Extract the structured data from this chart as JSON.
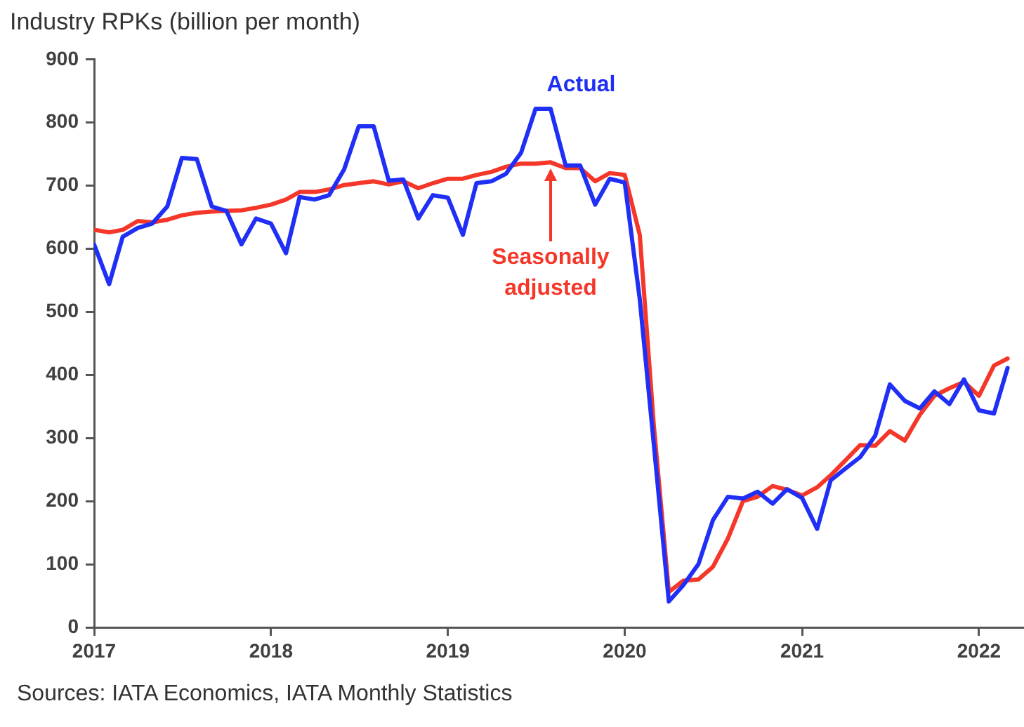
{
  "chart_data": {
    "type": "line",
    "title": "Industry RPKs (billion per month)",
    "x": [
      "2017-01",
      "2017-02",
      "2017-03",
      "2017-04",
      "2017-05",
      "2017-06",
      "2017-07",
      "2017-08",
      "2017-09",
      "2017-10",
      "2017-11",
      "2017-12",
      "2018-01",
      "2018-02",
      "2018-03",
      "2018-04",
      "2018-05",
      "2018-06",
      "2018-07",
      "2018-08",
      "2018-09",
      "2018-10",
      "2018-11",
      "2018-12",
      "2019-01",
      "2019-02",
      "2019-03",
      "2019-04",
      "2019-05",
      "2019-06",
      "2019-07",
      "2019-08",
      "2019-09",
      "2019-10",
      "2019-11",
      "2019-12",
      "2020-01",
      "2020-02",
      "2020-03",
      "2020-04",
      "2020-05",
      "2020-06",
      "2020-07",
      "2020-08",
      "2020-09",
      "2020-10",
      "2020-11",
      "2020-12",
      "2021-01",
      "2021-02",
      "2021-03",
      "2021-04",
      "2021-05",
      "2021-06",
      "2021-07",
      "2021-08",
      "2021-09",
      "2021-10",
      "2021-11",
      "2021-12",
      "2022-01",
      "2022-02",
      "2022-03"
    ],
    "series": [
      {
        "name": "Actual",
        "color": "#1f2ff5",
        "values": [
          607,
          544,
          619,
          633,
          640,
          667,
          744,
          742,
          667,
          660,
          607,
          648,
          640,
          593,
          682,
          678,
          685,
          726,
          794,
          794,
          708,
          710,
          648,
          685,
          681,
          622,
          704,
          707,
          719,
          752,
          822,
          822,
          732,
          732,
          670,
          711,
          705,
          520,
          290,
          41,
          67,
          100,
          170,
          207,
          204,
          215,
          196,
          219,
          205,
          156,
          233,
          252,
          270,
          304,
          385,
          359,
          347,
          374,
          354,
          393,
          344,
          339,
          411
        ]
      },
      {
        "name": "Seasonally adjusted",
        "color": "#f5372a",
        "values": [
          630,
          626,
          630,
          644,
          642,
          646,
          653,
          657,
          659,
          660,
          661,
          665,
          670,
          678,
          690,
          690,
          694,
          701,
          704,
          707,
          702,
          707,
          696,
          704,
          711,
          711,
          717,
          722,
          730,
          735,
          735,
          737,
          728,
          728,
          707,
          720,
          717,
          622,
          320,
          56,
          74,
          76,
          96,
          141,
          200,
          207,
          224,
          218,
          209,
          222,
          241,
          265,
          289,
          288,
          311,
          296,
          337,
          367,
          379,
          389,
          367,
          415,
          426
        ]
      }
    ],
    "xlim": [
      "2017-01",
      "2022-04"
    ],
    "xticks": [
      "2017",
      "2018",
      "2019",
      "2020",
      "2021",
      "2022"
    ],
    "ylim": [
      0,
      900
    ],
    "yticks": [
      0,
      100,
      200,
      300,
      400,
      500,
      600,
      700,
      800,
      900
    ],
    "grid": false,
    "legend": false,
    "marker": "none",
    "line_style": "solid",
    "annotations": [
      "Sources: IATA Economics, IATA Monthly Statistics"
    ]
  }
}
